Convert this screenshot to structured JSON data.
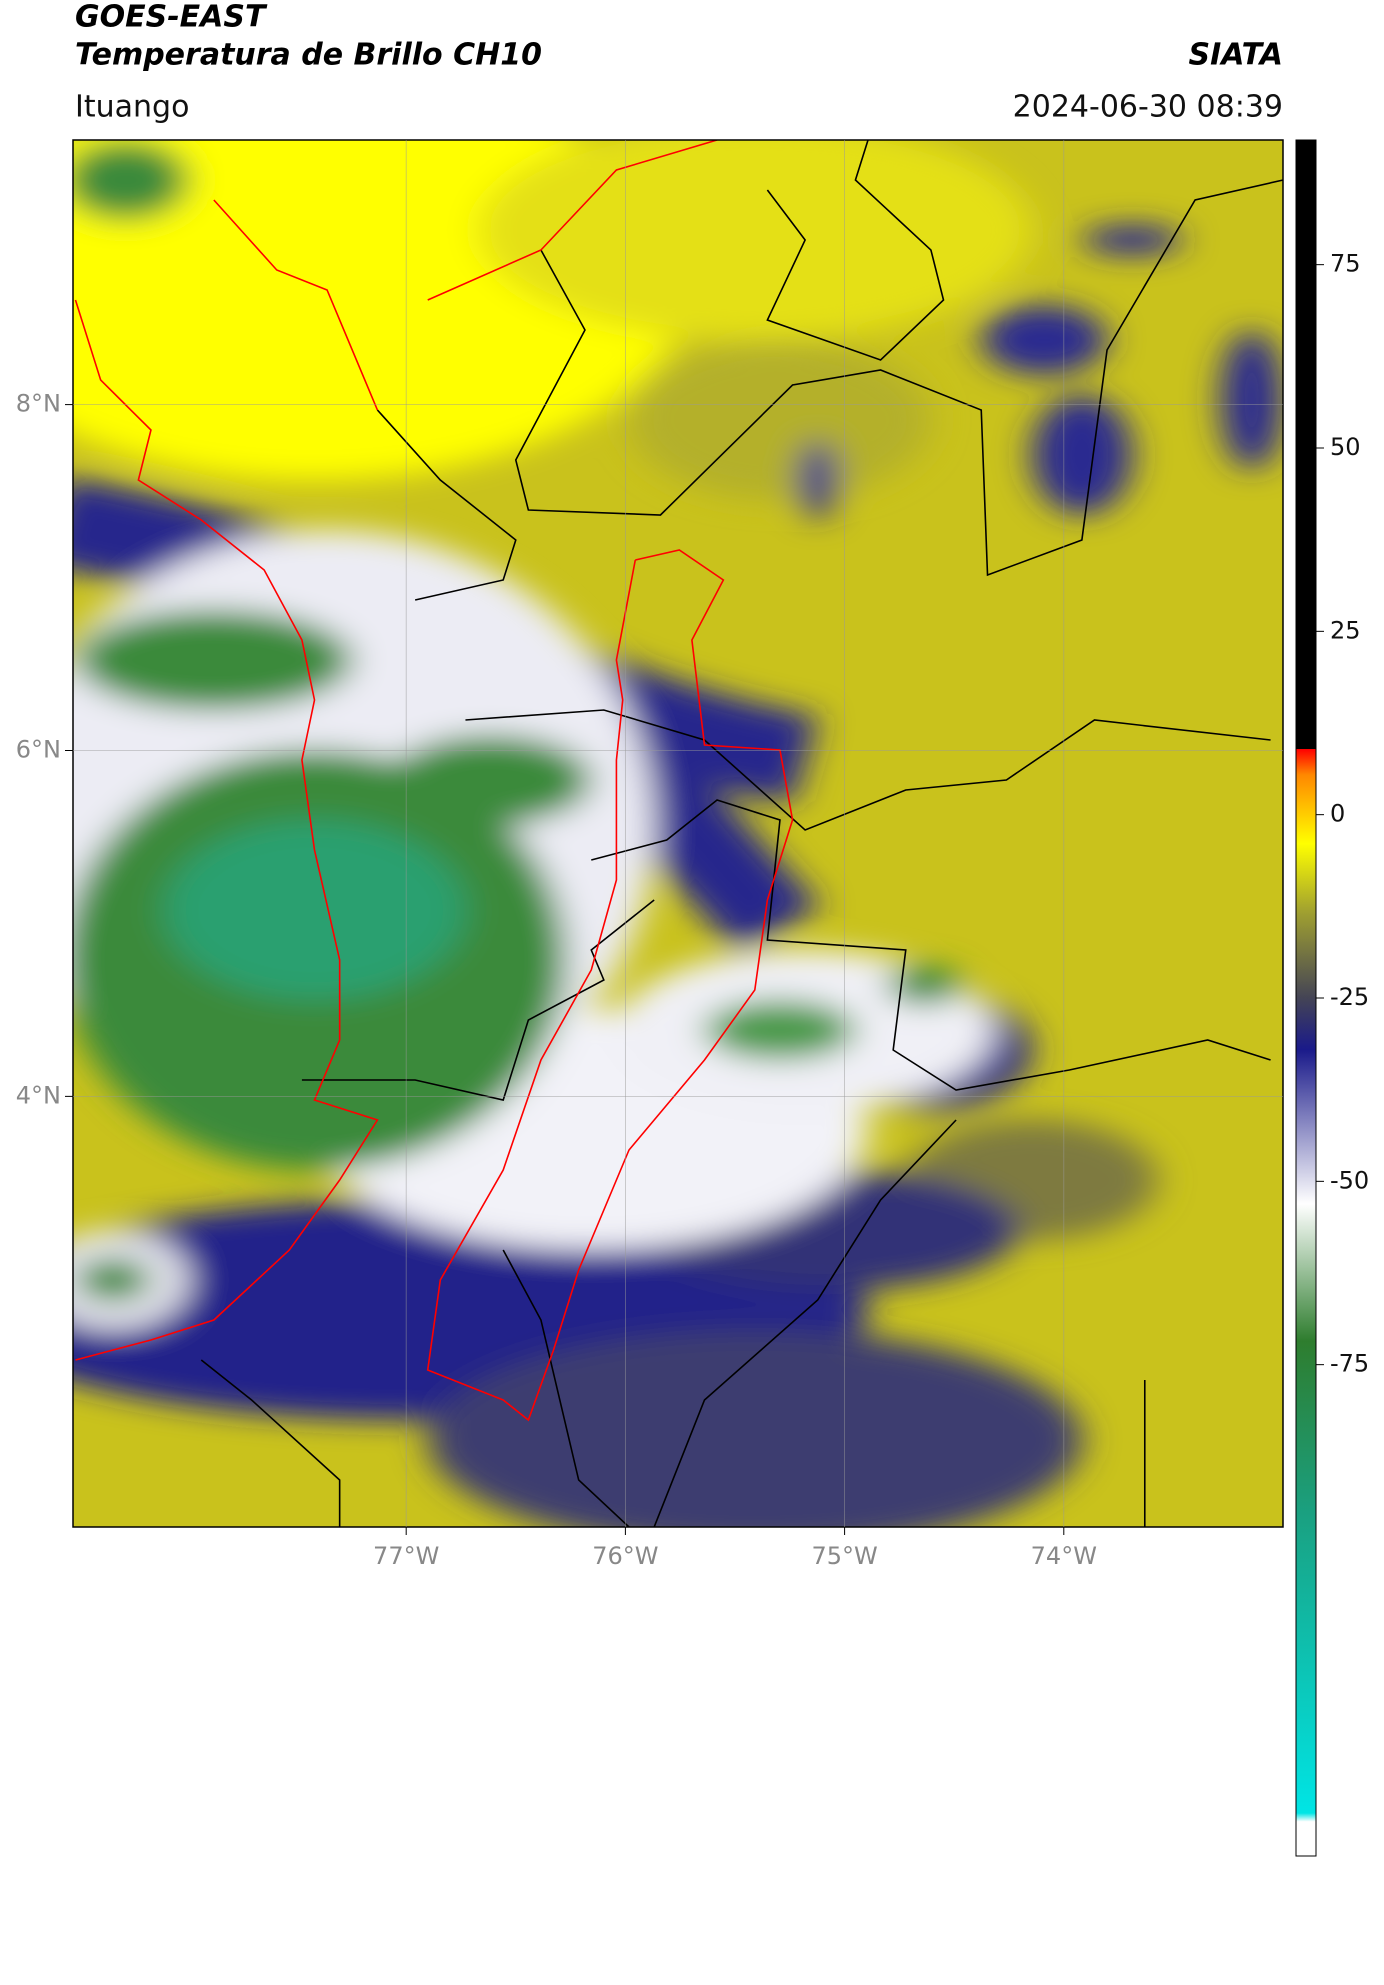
{
  "header": {
    "title": "GOES-EAST",
    "subtitle": "Temperatura de Brillo CH10",
    "brand": "SIATA",
    "location": "Ituango",
    "timestamp": "2024-06-30 08:39"
  },
  "map": {
    "lon_range": [
      -78.52,
      -73.0
    ],
    "lat_range": [
      1.51,
      9.53
    ],
    "lon_ticks": [
      {
        "value": -77,
        "label": "77°W"
      },
      {
        "value": -76,
        "label": "76°W"
      },
      {
        "value": -75,
        "label": "75°W"
      },
      {
        "value": -74,
        "label": "74°W"
      }
    ],
    "lat_ticks": [
      {
        "value": 8,
        "label": "8°N"
      },
      {
        "value": 6,
        "label": "6°N"
      },
      {
        "value": 4,
        "label": "4°N"
      }
    ],
    "grid": true
  },
  "colorbar": {
    "range": [
      -142,
      92
    ],
    "ticks": [
      -75,
      -50,
      -25,
      0,
      25,
      50,
      75
    ]
  }
}
